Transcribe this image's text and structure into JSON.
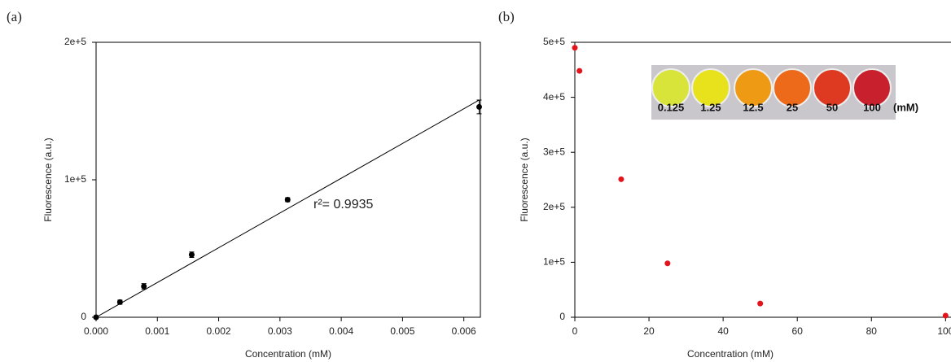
{
  "chart_data": [
    {
      "type": "scatter",
      "panel_label": "(a)",
      "xlabel": "Concentration (mM)",
      "ylabel": "Fluorescence (a.u.)",
      "x": [
        0,
        0.00039,
        0.00078,
        0.00156,
        0.003125,
        0.00625
      ],
      "values": [
        0,
        11000,
        22500,
        45500,
        85500,
        153000
      ],
      "errors": [
        1000,
        1500,
        2000,
        2000,
        1500,
        5000
      ],
      "color": "#000000",
      "fit": {
        "x": [
          0,
          0.00625
        ],
        "values": [
          0,
          158000
        ],
        "color": "#000000"
      },
      "annotation": "r²= 0.9935",
      "xlim": [
        0,
        0.00627
      ],
      "ylim": [
        0,
        200000
      ],
      "xticks": [
        {
          "value": 0,
          "label": "0.000"
        },
        {
          "value": 0.001,
          "label": "0.001"
        },
        {
          "value": 0.002,
          "label": "0.002"
        },
        {
          "value": 0.003,
          "label": "0.003"
        },
        {
          "value": 0.004,
          "label": "0.004"
        },
        {
          "value": 0.005,
          "label": "0.005"
        },
        {
          "value": 0.006,
          "label": "0.006"
        }
      ],
      "yticks": [
        0,
        {
          "value": 100000,
          "label": "1e+5"
        },
        {
          "value": 200000,
          "label": "2e+5"
        }
      ]
    },
    {
      "type": "scatter",
      "panel_label": "(b)",
      "xlabel": "Concentration (mM)",
      "ylabel": "Fluorescence (a.u.)",
      "x": [
        0,
        1.25,
        12.5,
        25,
        50,
        100
      ],
      "values": [
        490000,
        448000,
        251000,
        98000,
        25000,
        3000
      ],
      "color": "#e3141b",
      "inset": {
        "labels": [
          "0.125",
          "1.25",
          "12.5",
          "25",
          "50",
          "100"
        ],
        "unit": "(mM)",
        "colors": [
          "#d9e43a",
          "#e8e21c",
          "#ee9a14",
          "#ec6a1a",
          "#de3a22",
          "#c8202c"
        ]
      },
      "xlim": [
        0,
        103
      ],
      "ylim": [
        0,
        500000
      ],
      "xticks": [
        0,
        20,
        40,
        60,
        80,
        100
      ],
      "yticks": [
        0,
        {
          "value": 100000,
          "label": "1e+5"
        },
        {
          "value": 200000,
          "label": "2e+5"
        },
        {
          "value": 300000,
          "label": "3e+5"
        },
        {
          "value": 400000,
          "label": "4e+5"
        },
        {
          "value": 500000,
          "label": "5e+5"
        }
      ]
    }
  ]
}
